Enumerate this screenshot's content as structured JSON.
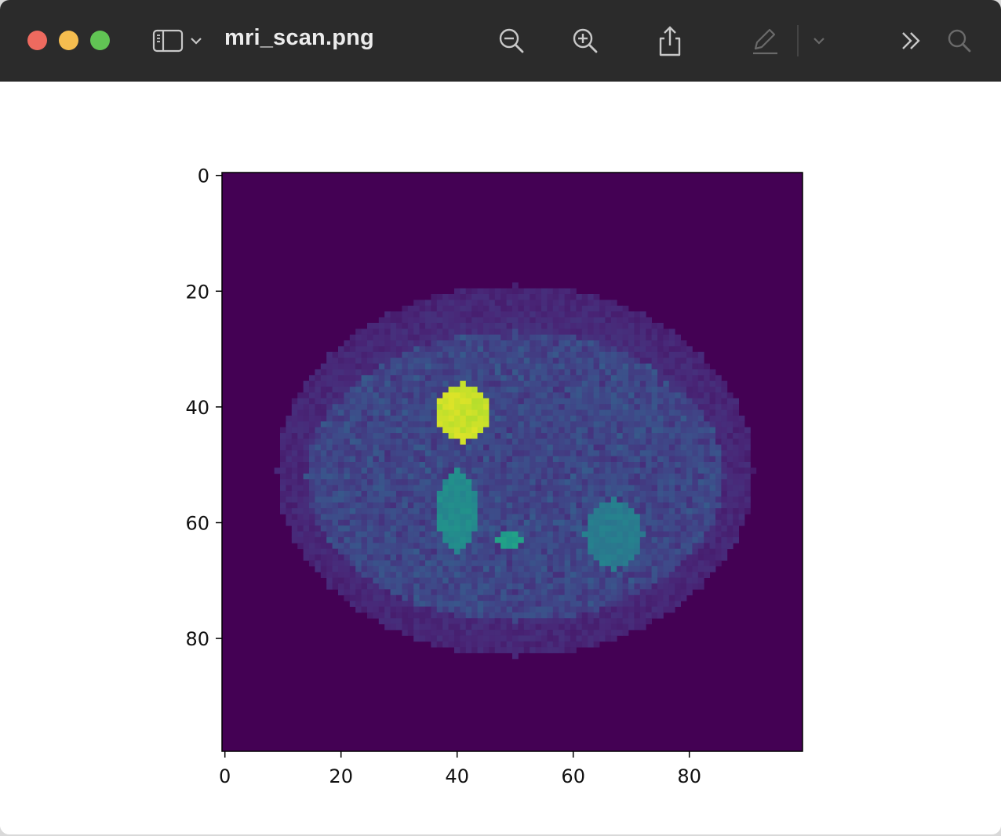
{
  "window": {
    "title": "mri_scan.png"
  },
  "toolbar": {
    "icons": [
      "sidebar-toggle-icon",
      "chevron-down-icon",
      "zoom-out-icon",
      "zoom-in-icon",
      "share-icon",
      "markup-pencil-icon",
      "chevron-down-icon",
      "more-chevrons-icon",
      "search-icon"
    ]
  },
  "colors": {
    "titlebar": "#2b2b2b",
    "close": "#ee6a5f",
    "minimize": "#f5bd4f",
    "maximize": "#61c554",
    "image_background": "#440154",
    "colormap": "viridis"
  },
  "chart_data": {
    "type": "heatmap",
    "title": "",
    "xlabel": "",
    "ylabel": "",
    "xlim": [
      0,
      99
    ],
    "ylim": [
      99,
      0
    ],
    "xticks": [
      "0",
      "20",
      "40",
      "60",
      "80"
    ],
    "yticks": [
      "0",
      "20",
      "40",
      "60",
      "80"
    ],
    "xtick_values": [
      0,
      20,
      40,
      60,
      80
    ],
    "ytick_values": [
      0,
      20,
      40,
      60,
      80
    ],
    "colormap": "viridis",
    "description_regions": [
      {
        "name": "body-outline",
        "cx": 50,
        "cy": 51,
        "rx": 41,
        "ry": 32,
        "value": 0.14
      },
      {
        "name": "inner-abdomen",
        "cx": 50,
        "cy": 52,
        "rx": 36,
        "ry": 25,
        "value": 0.2
      },
      {
        "name": "gallbladder",
        "cx": 41,
        "cy": 41,
        "rx": 4.5,
        "ry": 5,
        "value": 0.92
      },
      {
        "name": "left-kidney",
        "cx": 40,
        "cy": 58,
        "rx": 3.5,
        "ry": 7,
        "value": 0.48
      },
      {
        "name": "right-kidney",
        "cx": 67,
        "cy": 62,
        "rx": 5,
        "ry": 6,
        "value": 0.42
      },
      {
        "name": "aorta",
        "cx": 49,
        "cy": 63,
        "rx": 2,
        "ry": 1.5,
        "value": 0.55
      }
    ]
  }
}
